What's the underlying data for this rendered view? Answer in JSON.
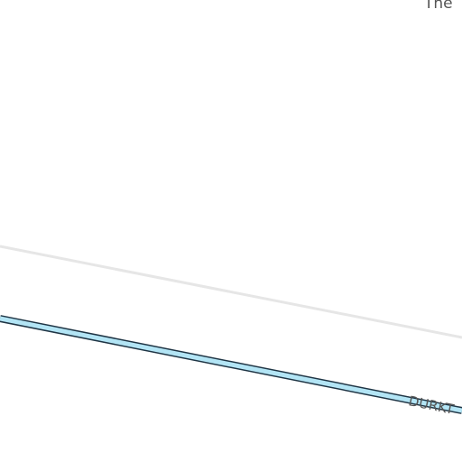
{
  "map": {
    "colors": {
      "background": "#ffffff",
      "minor_road": "#e6e6e6",
      "route_fill": "#b3e5f5",
      "route_casing": "#1f3545",
      "label": "#555555"
    },
    "labels": {
      "top_right_place": "The",
      "route_street": "DURKT"
    }
  }
}
